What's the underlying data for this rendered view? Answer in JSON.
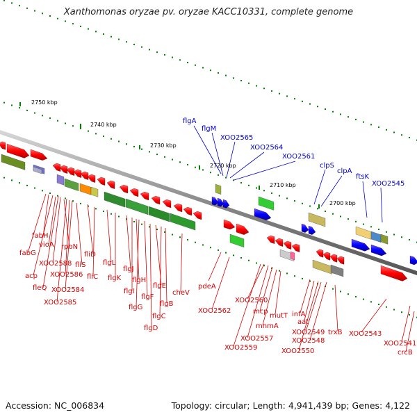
{
  "title": "Xanthomonas oryzae pv. oryzae KACC10331, complete genome",
  "footer": {
    "accession": "Accession: NC_006834",
    "topology": "Topology: circular; Length: 4,941,439 bp; Genes: 4,122"
  },
  "colors": {
    "backbone": "#808080",
    "forward_gene": "#ff0000",
    "reverse_gene": "#0000ff",
    "red_label": "#d40000",
    "blue_label": "#0000cc",
    "tick": "#008000"
  },
  "scale_labels": [
    "2750 kbp",
    "2740 kbp",
    "2730 kbp",
    "2720 kbp",
    "2710 kbp",
    "2700 kbp"
  ],
  "blue_gene_labels": [
    "flgA",
    "flgM",
    "XOO2565",
    "XOO2564",
    "XOO2561",
    "clpS",
    "clpA",
    "ftsK",
    "XOO2545"
  ],
  "red_gene_labels": [
    "fabH",
    "vioA",
    "fabG",
    "rpoN",
    "XOO2588",
    "acp",
    "fliS",
    "XOO2586",
    "fleQ",
    "XOO2584",
    "XOO2585",
    "fliD",
    "fliC",
    "flgL",
    "flgK",
    "flgJ",
    "flgH",
    "flgI",
    "flgF",
    "flgG",
    "flgE",
    "flgB",
    "flgC",
    "flgD",
    "cheV",
    "pdeA",
    "XOO2562",
    "XOO2560",
    "mcp",
    "mutT",
    "mnmA",
    "XOO2557",
    "XOO2559",
    "infA",
    "aat",
    "XOO2549",
    "XOO2548",
    "XOO2550",
    "trxB",
    "XOO2543",
    "XOO2541",
    "crcB"
  ]
}
